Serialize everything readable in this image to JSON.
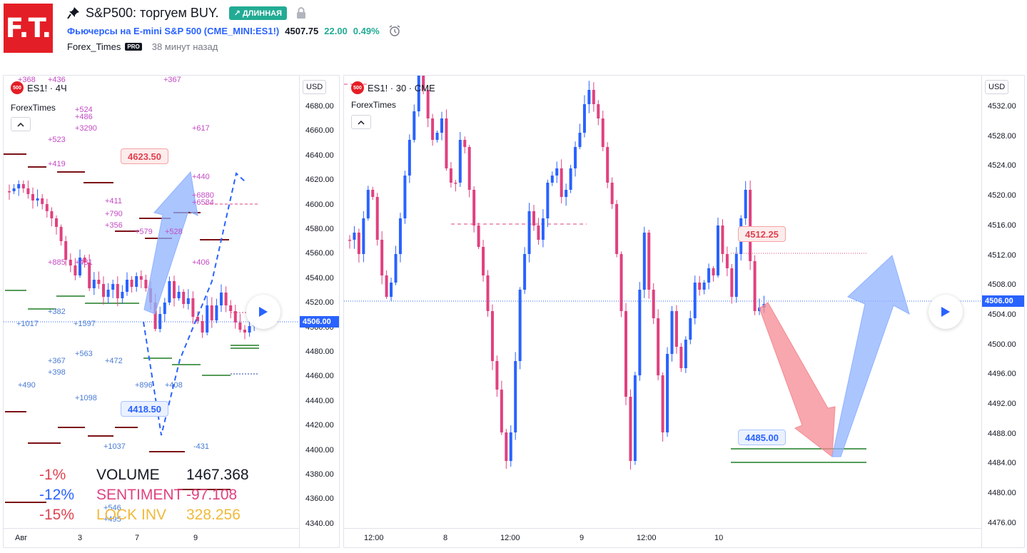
{
  "header": {
    "logo_text": "F.T.",
    "title": "S&P500: торгуем BUY.",
    "badge": "↗ ДЛИННАЯ",
    "symbol_link": "Фьючерсы на E-mini S&P 500 (CME_MINI:ES1!)",
    "price": "4507.75",
    "change": "22.00",
    "change_pct": "0.49%",
    "author": "Forex_Times",
    "pro_badge": "PRO",
    "time_ago": "38 минут назад",
    "colors": {
      "logo_bg": "#e41e26",
      "badge_bg": "#22ab94",
      "link": "#2962ff",
      "positive": "#22ab94"
    },
    "icons": [
      "pin-icon",
      "lock-icon",
      "alarm-clock-icon"
    ]
  },
  "left_chart": {
    "legend_symbol": "ES1! · 4Ч",
    "symbol_badge": "500",
    "sub_legend": "ForexTimes",
    "currency": "USD",
    "y_ticks": [
      "4680.00",
      "4660.00",
      "4640.00",
      "4620.00",
      "4600.00",
      "4580.00",
      "4560.00",
      "4540.00",
      "4520.00",
      "4500.00",
      "4480.00",
      "4460.00",
      "4440.00",
      "4420.00",
      "4400.00",
      "4380.00",
      "4360.00",
      "4340.00"
    ],
    "last_price": "4506.00",
    "x_ticks": [
      "Авг",
      "3",
      "7",
      "9"
    ],
    "callout_high": "4623.50",
    "callout_low": "4418.50",
    "annotations_top": [
      "+368",
      "+436",
      "+367",
      "+524",
      "+486",
      "+3290",
      "+617",
      "+523",
      "+419",
      "+440",
      "+6880",
      "+6584",
      "+411",
      "+790",
      "+356",
      "+579",
      "+528",
      "+885",
      "+431",
      "+406",
      "+382",
      "+1017",
      "+1597",
      "+367",
      "+563",
      "+472",
      "+398",
      "+490",
      "+896",
      "+408",
      "+1098",
      "+1037",
      "-431",
      "+546",
      "+495"
    ],
    "stats": [
      {
        "pct": "-1%",
        "label": "VOLUME",
        "value": "1467.368",
        "color": "#131722",
        "pct_color": "#e0414f"
      },
      {
        "pct": "-12%",
        "label": "SENTIMENT",
        "value": "-97.108",
        "color": "#e0417f",
        "pct_color": "#2962ff"
      },
      {
        "pct": "-15%",
        "label": "LOCK INV",
        "value": "328.256",
        "color": "#f0b93a",
        "pct_color": "#e0414f"
      }
    ]
  },
  "right_chart": {
    "legend_symbol": "ES1! · 30 · CME",
    "symbol_badge": "500",
    "sub_legend": "ForexTimes",
    "currency": "USD",
    "y_ticks": [
      "4532.00",
      "4528.00",
      "4524.00",
      "4520.00",
      "4516.00",
      "4512.00",
      "4508.00",
      "4504.00",
      "4500.00",
      "4496.00",
      "4492.00",
      "4488.00",
      "4484.00",
      "4480.00",
      "4476.00"
    ],
    "last_price": "4506.00",
    "x_ticks": [
      "12:00",
      "8",
      "12:00",
      "9",
      "12:00",
      "10"
    ],
    "callout_target": "4512.25",
    "callout_entry": "4485.00"
  },
  "colors": {
    "up_candle": "#2962ff",
    "down_candle": "#e0417f",
    "support_line": "#1e7d22",
    "resistance_line": "#7b1116",
    "arrow_up": "#8fb2ff",
    "arrow_down": "#f48a92"
  }
}
